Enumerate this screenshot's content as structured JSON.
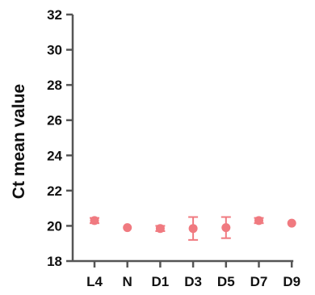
{
  "chart_data": {
    "type": "scatter",
    "title": "",
    "xlabel": "",
    "ylabel": "Ct mean value",
    "categories": [
      "L4",
      "N",
      "D1",
      "D3",
      "D5",
      "D7",
      "D9"
    ],
    "series": [
      {
        "values": [
          20.3,
          19.9,
          19.85,
          19.85,
          19.9,
          20.3,
          20.15
        ],
        "errors": [
          0.15,
          0.05,
          0.15,
          0.65,
          0.6,
          0.15,
          0.05
        ]
      }
    ],
    "ylim": [
      18,
      32
    ],
    "yticks": [
      "18",
      "20",
      "22",
      "24",
      "26",
      "28",
      "30",
      "32"
    ],
    "grid": false,
    "color": "#F07A80"
  }
}
